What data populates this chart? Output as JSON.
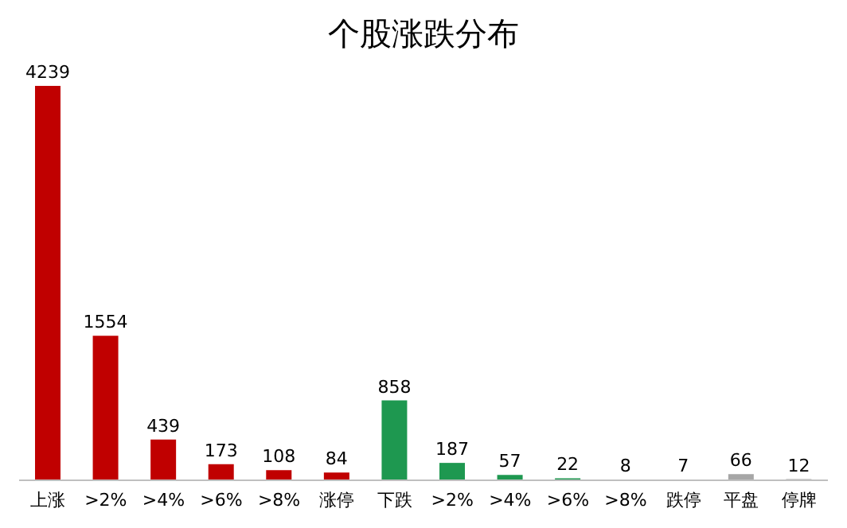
{
  "chart_data": {
    "type": "bar",
    "title": "个股涨跌分布",
    "categories": [
      "上涨",
      ">2%",
      ">4%",
      ">6%",
      ">8%",
      "涨停",
      "下跌",
      ">2%",
      ">4%",
      ">6%",
      ">8%",
      "跌停",
      "平盘",
      "停牌"
    ],
    "values": [
      4239,
      1554,
      439,
      173,
      108,
      84,
      858,
      187,
      57,
      22,
      8,
      7,
      66,
      12
    ],
    "colors": [
      "#c00000",
      "#c00000",
      "#c00000",
      "#c00000",
      "#c00000",
      "#c00000",
      "#1e9850",
      "#1e9850",
      "#1e9850",
      "#1e9850",
      "#1e9850",
      "#1e9850",
      "#a6a6a6",
      "#a6a6a6"
    ],
    "data_labels": true,
    "grid": false,
    "legend": false
  }
}
